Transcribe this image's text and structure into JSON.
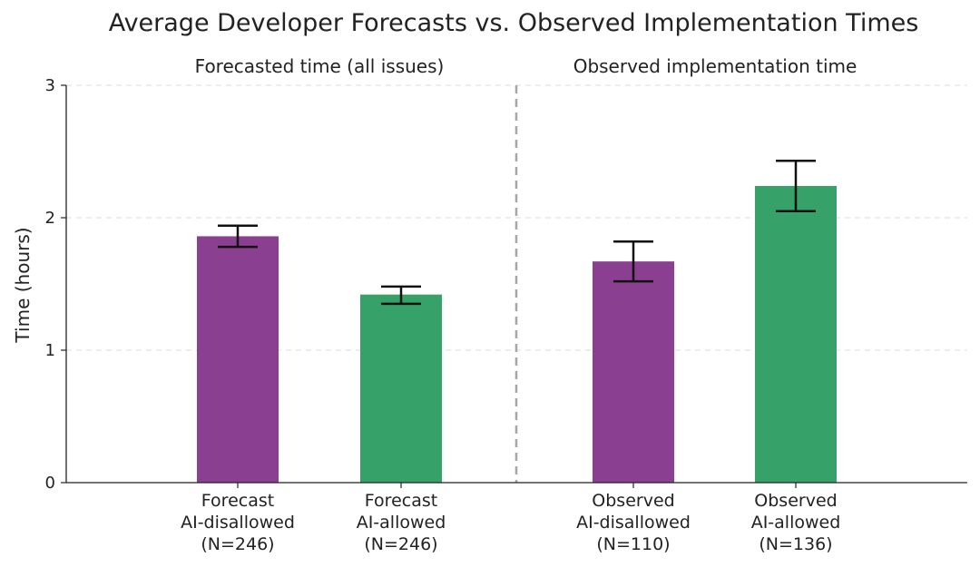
{
  "chart_data": {
    "type": "bar",
    "title": "Average Developer Forecasts vs. Observed Implementation Times",
    "ylabel": "Time (hours)",
    "ylim": [
      0,
      3
    ],
    "yticks": [
      0,
      1,
      2,
      3
    ],
    "grid": "horizontal dashed",
    "groups": [
      {
        "label": "Forecasted time (all issues)"
      },
      {
        "label": "Observed implementation time"
      }
    ],
    "categories": [
      [
        "Forecast",
        "AI-disallowed",
        "(N=246)"
      ],
      [
        "Forecast",
        "AI-allowed",
        "(N=246)"
      ],
      [
        "Observed",
        "AI-disallowed",
        "(N=110)"
      ],
      [
        "Observed",
        "AI-allowed",
        "(N=136)"
      ]
    ],
    "values": [
      1.86,
      1.42,
      1.67,
      2.24
    ],
    "error_low": [
      1.78,
      1.35,
      1.52,
      2.05
    ],
    "error_high": [
      1.94,
      1.48,
      1.82,
      2.43
    ],
    "colors": [
      "#8b3f91",
      "#36a269",
      "#8b3f91",
      "#36a269"
    ]
  }
}
